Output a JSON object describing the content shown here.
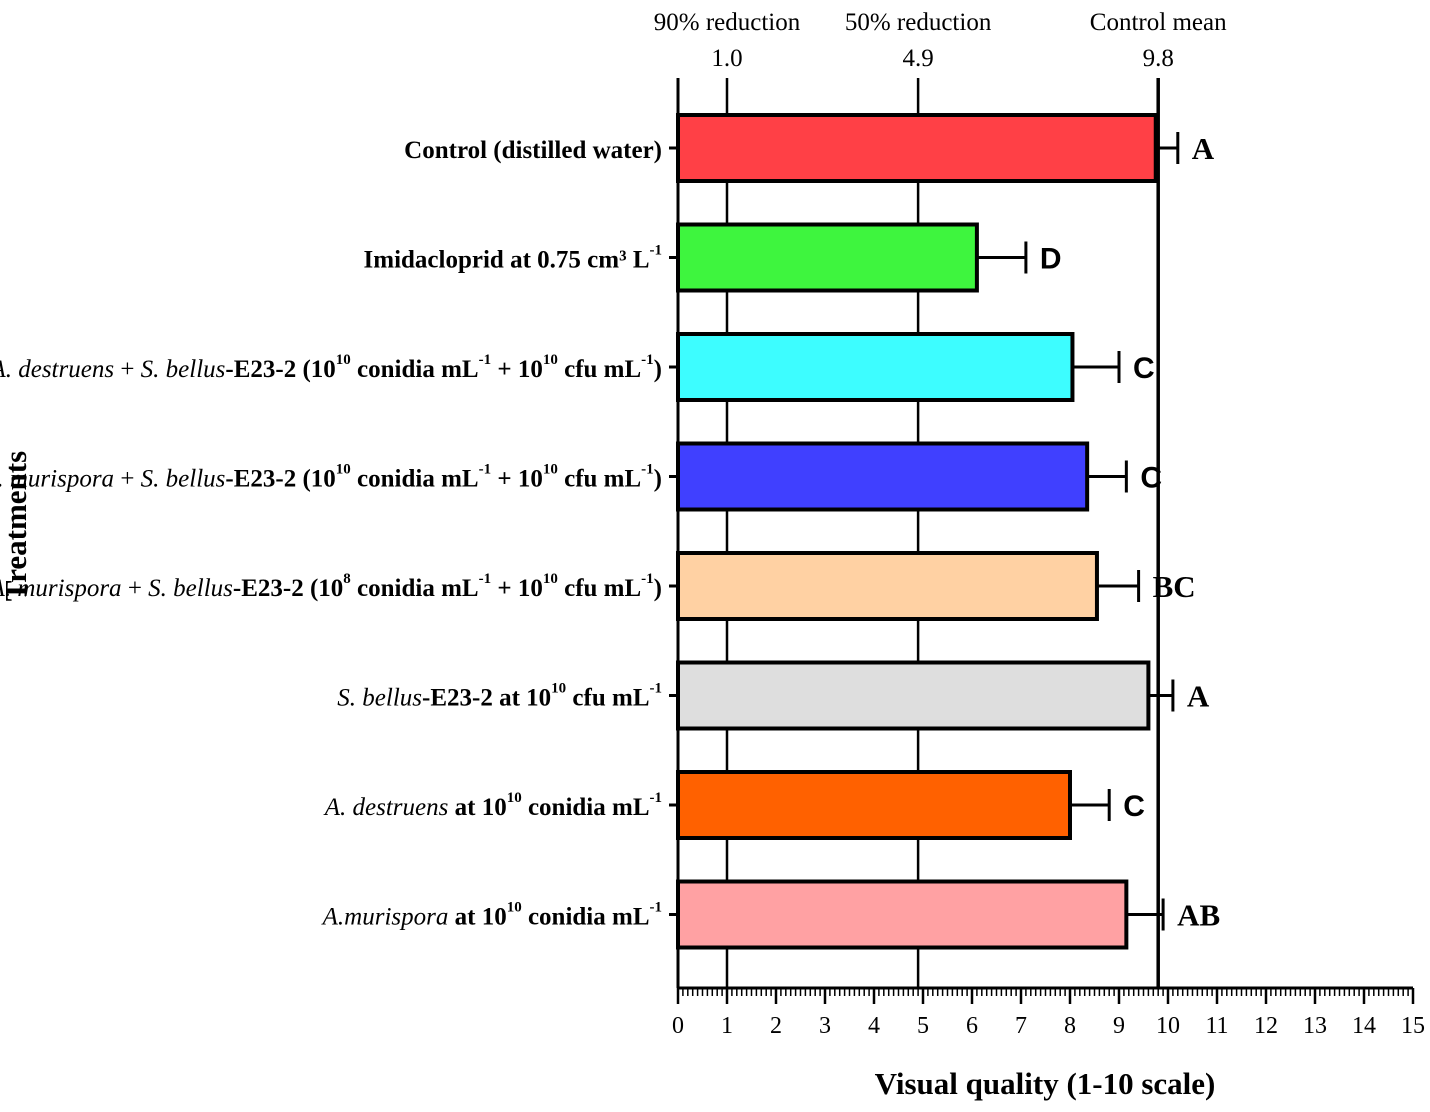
{
  "chart_data": {
    "type": "bar",
    "orientation": "horizontal",
    "xlabel": "Visual quality (1-10 scale)",
    "ylabel": "Treatments",
    "xlim": [
      0,
      15
    ],
    "x_ticks": [
      "0",
      "1",
      "2",
      "3",
      "4",
      "5",
      "6",
      "7",
      "8",
      "9",
      "10",
      "11",
      "12",
      "13",
      "14",
      "15"
    ],
    "grid": false,
    "reference_lines": [
      {
        "label": "90% reduction",
        "value_label": "1.0",
        "value": 1.0
      },
      {
        "label": "50% reduction",
        "value_label": "4.9",
        "value": 4.9
      },
      {
        "label": "Control mean",
        "value_label": "9.8",
        "value": 9.8
      }
    ],
    "bars": [
      {
        "parts": [
          {
            "t": "Control (distilled water)",
            "s": "b"
          }
        ],
        "value": 9.75,
        "error": 0.45,
        "letter": "A",
        "letter_font": "serif",
        "color": "#ff4046"
      },
      {
        "parts": [
          {
            "t": "Imidacloprid at 0.75 cm³ L",
            "s": "b"
          },
          {
            "t": "-1",
            "s": "sup"
          }
        ],
        "value": 6.1,
        "error": 1.0,
        "letter": "D",
        "letter_font": "sans",
        "color": "#3ef53e"
      },
      {
        "parts": [
          {
            "t": "A. destruens",
            "s": "i"
          },
          {
            "t": " + ",
            "s": "n"
          },
          {
            "t": "S. bellus",
            "s": "i"
          },
          {
            "t": "-E23-2 (10",
            "s": "b"
          },
          {
            "t": "10",
            "s": "sup"
          },
          {
            "t": " conidia mL",
            "s": "b"
          },
          {
            "t": "-1",
            "s": "sup"
          },
          {
            "t": " + 10",
            "s": "b"
          },
          {
            "t": "10",
            "s": "sup"
          },
          {
            "t": " cfu mL",
            "s": "b"
          },
          {
            "t": "-1",
            "s": "sup"
          },
          {
            "t": ")",
            "s": "b"
          }
        ],
        "value": 8.05,
        "error": 0.95,
        "letter": "C",
        "letter_font": "sans",
        "color": "#3dfdff"
      },
      {
        "parts": [
          {
            "t": "A. murispora",
            "s": "i"
          },
          {
            "t": " + ",
            "s": "n"
          },
          {
            "t": "S. bellus",
            "s": "i"
          },
          {
            "t": "-E23-2 (10",
            "s": "b"
          },
          {
            "t": "10",
            "s": "sup"
          },
          {
            "t": " conidia mL",
            "s": "b"
          },
          {
            "t": "-1",
            "s": "sup"
          },
          {
            "t": " + 10",
            "s": "b"
          },
          {
            "t": "10",
            "s": "sup"
          },
          {
            "t": " cfu mL",
            "s": "b"
          },
          {
            "t": "-1",
            "s": "sup"
          },
          {
            "t": ")",
            "s": "b"
          }
        ],
        "value": 8.35,
        "error": 0.8,
        "letter": "C",
        "letter_font": "sans",
        "color": "#4040ff"
      },
      {
        "parts": [
          {
            "t": "A. murispora",
            "s": "i"
          },
          {
            "t": " + ",
            "s": "n"
          },
          {
            "t": "S. bellus",
            "s": "i"
          },
          {
            "t": "-E23-2 (10",
            "s": "b"
          },
          {
            "t": "8",
            "s": "sup"
          },
          {
            "t": " conidia mL",
            "s": "b"
          },
          {
            "t": "-1",
            "s": "sup"
          },
          {
            "t": " + 10",
            "s": "b"
          },
          {
            "t": "10",
            "s": "sup"
          },
          {
            "t": " cfu mL",
            "s": "b"
          },
          {
            "t": "-1",
            "s": "sup"
          },
          {
            "t": ")",
            "s": "b"
          }
        ],
        "value": 8.55,
        "error": 0.85,
        "letter": "BC",
        "letter_font": "serif",
        "color": "#ffd1a3"
      },
      {
        "parts": [
          {
            "t": "S. bellus",
            "s": "i"
          },
          {
            "t": "-E23-2 at 10",
            "s": "b"
          },
          {
            "t": "10",
            "s": "sup"
          },
          {
            "t": " cfu mL",
            "s": "b"
          },
          {
            "t": "-1",
            "s": "sup"
          }
        ],
        "value": 9.6,
        "error": 0.5,
        "letter": "A",
        "letter_font": "serif",
        "color": "#dedede"
      },
      {
        "parts": [
          {
            "t": "A. destruens",
            "s": "i"
          },
          {
            "t": "  at 10",
            "s": "b"
          },
          {
            "t": "10",
            "s": "sup"
          },
          {
            "t": "  conidia mL",
            "s": "b"
          },
          {
            "t": "-1",
            "s": "sup"
          }
        ],
        "value": 8.0,
        "error": 0.8,
        "letter": "C",
        "letter_font": "sans",
        "color": "#ff6100"
      },
      {
        "parts": [
          {
            "t": "A.murispora",
            "s": "i"
          },
          {
            "t": " at 10",
            "s": "b"
          },
          {
            "t": "10",
            "s": "sup"
          },
          {
            "t": "  conidia mL",
            "s": "b"
          },
          {
            "t": "-1",
            "s": "sup"
          }
        ],
        "value": 9.15,
        "error": 0.75,
        "letter": "AB",
        "letter_font": "serif",
        "color": "#ffa1a3"
      }
    ]
  }
}
